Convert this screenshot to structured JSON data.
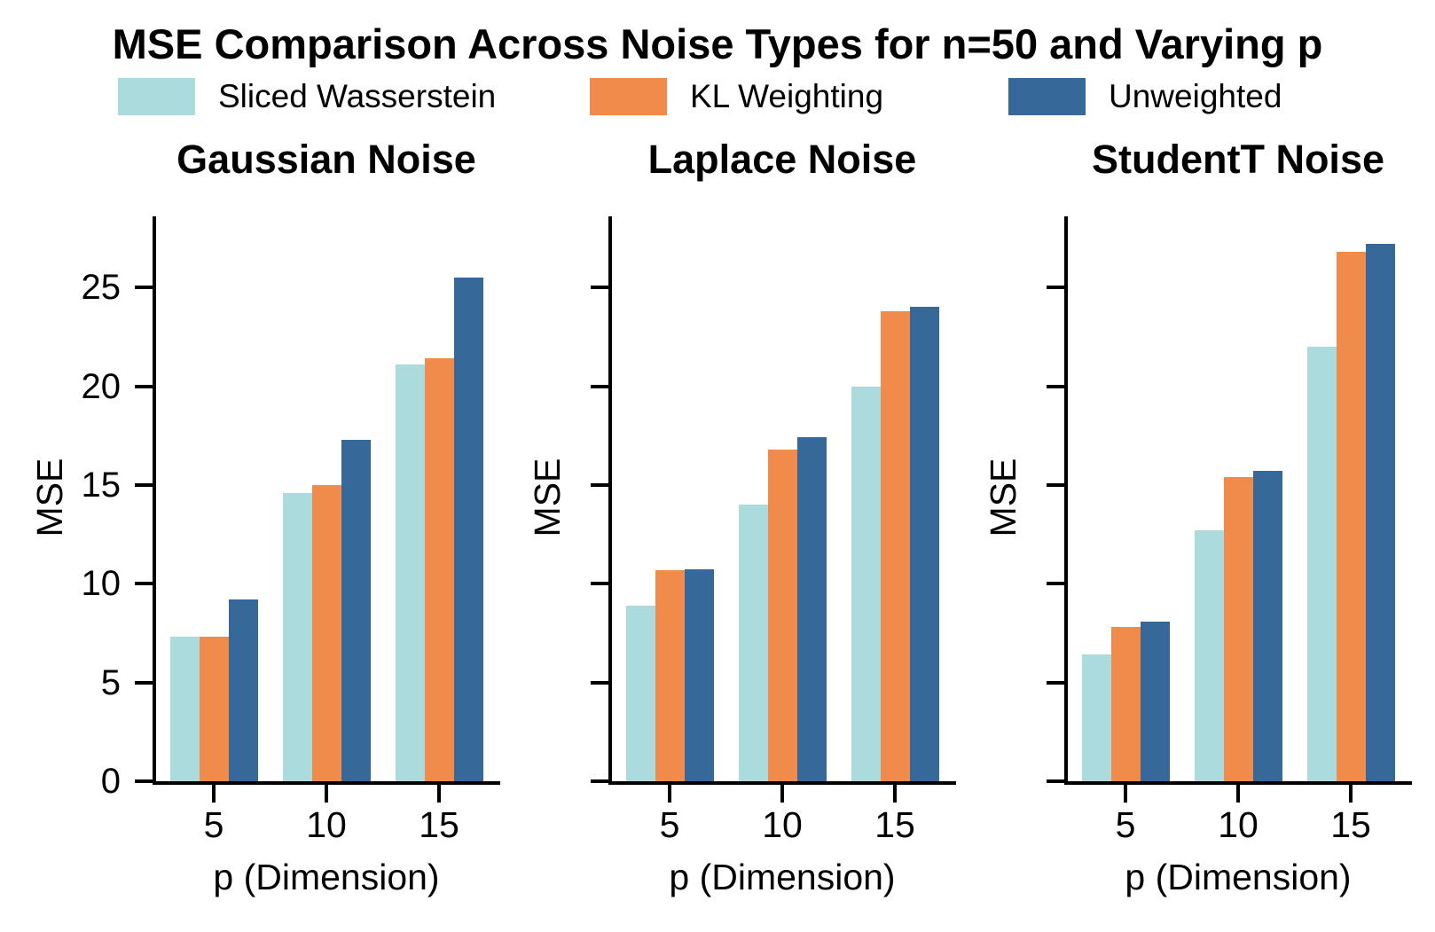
{
  "figure_title": "MSE Comparison Across Noise Types for n=50 and Varying p",
  "legend": {
    "items": [
      {
        "label": "Sliced Wasserstein",
        "color": "#ACDBDD"
      },
      {
        "label": "KL Weighting",
        "color": "#F08B4B"
      },
      {
        "label": "Unweighted",
        "color": "#366999"
      }
    ]
  },
  "chart_data": [
    {
      "type": "bar",
      "title": "Gaussian Noise",
      "xlabel": "p (Dimension)",
      "ylabel": "MSE",
      "categories": [
        5,
        10,
        15
      ],
      "ylim": [
        0,
        28.6
      ],
      "yticks": [
        0,
        5,
        10,
        15,
        20,
        25
      ],
      "show_ytick_labels": true,
      "grid": false,
      "legend_position": "figure-top",
      "series": [
        {
          "name": "Sliced Wasserstein",
          "color": "#ACDBDD",
          "values": [
            7.3,
            14.6,
            21.1
          ]
        },
        {
          "name": "KL Weighting",
          "color": "#F08B4B",
          "values": [
            7.3,
            15.0,
            21.4
          ]
        },
        {
          "name": "Unweighted",
          "color": "#366999",
          "values": [
            9.2,
            17.3,
            25.5
          ]
        }
      ]
    },
    {
      "type": "bar",
      "title": "Laplace Noise",
      "xlabel": "p (Dimension)",
      "ylabel": "MSE",
      "categories": [
        5,
        10,
        15
      ],
      "ylim": [
        0,
        28.6
      ],
      "yticks": [
        0,
        5,
        10,
        15,
        20,
        25
      ],
      "show_ytick_labels": false,
      "grid": false,
      "legend_position": "figure-top",
      "series": [
        {
          "name": "Sliced Wasserstein",
          "color": "#ACDBDD",
          "values": [
            8.9,
            14.0,
            20.0
          ]
        },
        {
          "name": "KL Weighting",
          "color": "#F08B4B",
          "values": [
            10.7,
            16.8,
            23.8
          ]
        },
        {
          "name": "Unweighted",
          "color": "#366999",
          "values": [
            10.75,
            17.4,
            24.0
          ]
        }
      ]
    },
    {
      "type": "bar",
      "title": "StudentT Noise",
      "xlabel": "p (Dimension)",
      "ylabel": "MSE",
      "categories": [
        5,
        10,
        15
      ],
      "ylim": [
        0,
        28.6
      ],
      "yticks": [
        0,
        5,
        10,
        15,
        20,
        25
      ],
      "show_ytick_labels": false,
      "grid": false,
      "legend_position": "figure-top",
      "series": [
        {
          "name": "Sliced Wasserstein",
          "color": "#ACDBDD",
          "values": [
            6.4,
            12.7,
            22.0
          ]
        },
        {
          "name": "KL Weighting",
          "color": "#F08B4B",
          "values": [
            7.8,
            15.4,
            26.8
          ]
        },
        {
          "name": "Unweighted",
          "color": "#366999",
          "values": [
            8.1,
            15.7,
            27.2
          ]
        }
      ]
    }
  ]
}
